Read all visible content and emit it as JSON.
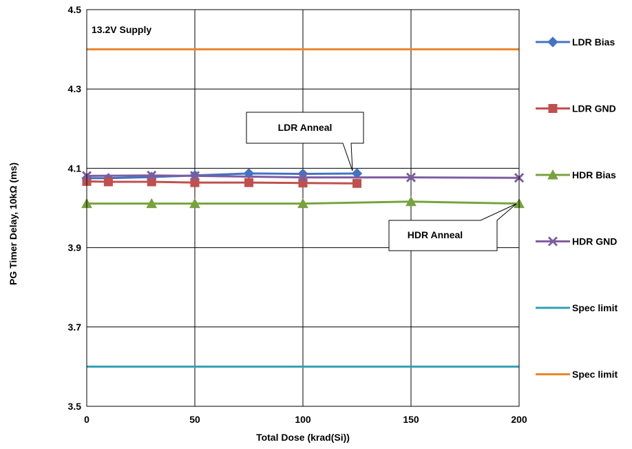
{
  "chart_data": {
    "type": "line",
    "title": "",
    "xlabel": "Total Dose (krad(Si))",
    "ylabel": "PG Timer Delay, 10kΩ (ms)",
    "xlim": [
      0,
      200
    ],
    "ylim": [
      3.5,
      4.5
    ],
    "xticks": [
      "0",
      "50",
      "100",
      "150",
      "200"
    ],
    "yticks": [
      "3.5",
      "3.7",
      "3.9",
      "4.1",
      "4.3",
      "4.5"
    ],
    "grid": true,
    "legend_position": "right",
    "annotations": [
      "13.2V Supply",
      "LDR Anneal",
      "HDR Anneal"
    ],
    "series": [
      {
        "name": "LDR Bias",
        "color": "#4472C4",
        "marker": "diamond",
        "x": [
          0,
          10,
          30,
          50,
          75,
          100,
          125
        ],
        "y": [
          4.075,
          4.075,
          4.078,
          4.082,
          4.087,
          4.086,
          4.087
        ]
      },
      {
        "name": "LDR GND",
        "color": "#C0504D",
        "marker": "square",
        "x": [
          0,
          10,
          30,
          50,
          75,
          100,
          125
        ],
        "y": [
          4.067,
          4.066,
          4.066,
          4.064,
          4.064,
          4.063,
          4.062
        ]
      },
      {
        "name": "HDR Bias",
        "color": "#77A23F",
        "marker": "triangle",
        "x": [
          0,
          30,
          50,
          100,
          150,
          200
        ],
        "y": [
          4.011,
          4.011,
          4.011,
          4.011,
          4.016,
          4.011
        ]
      },
      {
        "name": "HDR GND",
        "color": "#7D5DA0",
        "marker": "x",
        "x": [
          0,
          30,
          50,
          100,
          150,
          200
        ],
        "y": [
          4.081,
          4.082,
          4.081,
          4.077,
          4.077,
          4.076
        ]
      },
      {
        "name": "Spec limit",
        "color": "#31A0B6",
        "marker": "none",
        "x": [
          0,
          200
        ],
        "y": [
          3.6,
          3.6
        ]
      },
      {
        "name": "Spec limit",
        "color": "#E9862C",
        "marker": "none",
        "x": [
          0,
          200
        ],
        "y": [
          4.4,
          4.4
        ]
      }
    ]
  }
}
